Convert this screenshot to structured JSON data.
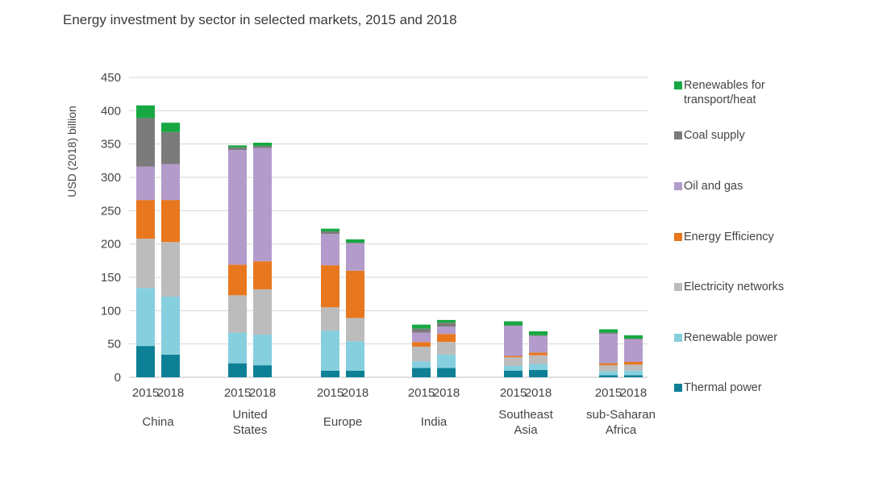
{
  "title": "Energy investment by sector in selected markets, 2015 and 2018",
  "chart_data": {
    "type": "bar",
    "stacked": true,
    "title": "Energy investment by sector in selected markets, 2015 and 2018",
    "ylabel": "USD (2018) billion",
    "xlabel": "",
    "ylim": [
      0,
      450
    ],
    "yticks": [
      0,
      50,
      100,
      150,
      200,
      250,
      300,
      350,
      400,
      450
    ],
    "grid": true,
    "legend_position": "right",
    "groups": [
      {
        "label": [
          "China"
        ],
        "years": [
          "2015",
          "2018"
        ]
      },
      {
        "label": [
          "United",
          "States"
        ],
        "years": [
          "2015",
          "2018"
        ]
      },
      {
        "label": [
          "Europe"
        ],
        "years": [
          "2015",
          "2018"
        ]
      },
      {
        "label": [
          "India"
        ],
        "years": [
          "2015",
          "2018"
        ]
      },
      {
        "label": [
          "Southeast",
          "Asia"
        ],
        "years": [
          "2015",
          "2018"
        ]
      },
      {
        "label": [
          "sub-Saharan",
          "Africa"
        ],
        "years": [
          "2015",
          "2018"
        ]
      }
    ],
    "categories": [
      "China 2015",
      "China 2018",
      "United States 2015",
      "United States 2018",
      "Europe 2015",
      "Europe 2018",
      "India 2015",
      "India 2018",
      "Southeast Asia 2015",
      "Southeast Asia 2018",
      "sub-Saharan Africa 2015",
      "sub-Saharan Africa 2018"
    ],
    "series": [
      {
        "name": "Thermal power",
        "color": "#0e8096",
        "values": [
          47,
          34,
          21,
          18,
          10,
          10,
          14,
          14,
          10,
          11,
          3,
          3
        ]
      },
      {
        "name": "Renewable power",
        "color": "#86cfdf",
        "values": [
          87,
          87,
          46,
          46,
          60,
          44,
          10,
          20,
          7,
          9,
          6,
          7
        ]
      },
      {
        "name": "Electricity networks",
        "color": "#bcbcbc",
        "values": [
          74,
          82,
          56,
          68,
          35,
          35,
          22,
          19,
          13,
          13,
          9,
          9
        ]
      },
      {
        "name": "Energy Efficiency",
        "color": "#e8771e",
        "values": [
          58,
          63,
          46,
          42,
          63,
          71,
          7,
          12,
          2,
          4,
          3,
          4
        ]
      },
      {
        "name": "Oil and gas",
        "color": "#b39ccb",
        "values": [
          50,
          54,
          172,
          170,
          47,
          41,
          14,
          11,
          45,
          25,
          44,
          34
        ]
      },
      {
        "name": "Coal supply",
        "color": "#7b7b7b",
        "values": [
          73,
          48,
          4,
          3,
          4,
          1,
          6,
          6,
          1,
          1,
          2,
          1
        ]
      },
      {
        "name": "Renewables for transport/heat",
        "color": "#17a843",
        "legend_lines": [
          "Renewables for",
          "transport/heat"
        ],
        "values": [
          19,
          14,
          3,
          5,
          4,
          5,
          6,
          4,
          6,
          6,
          5,
          5
        ]
      }
    ]
  }
}
